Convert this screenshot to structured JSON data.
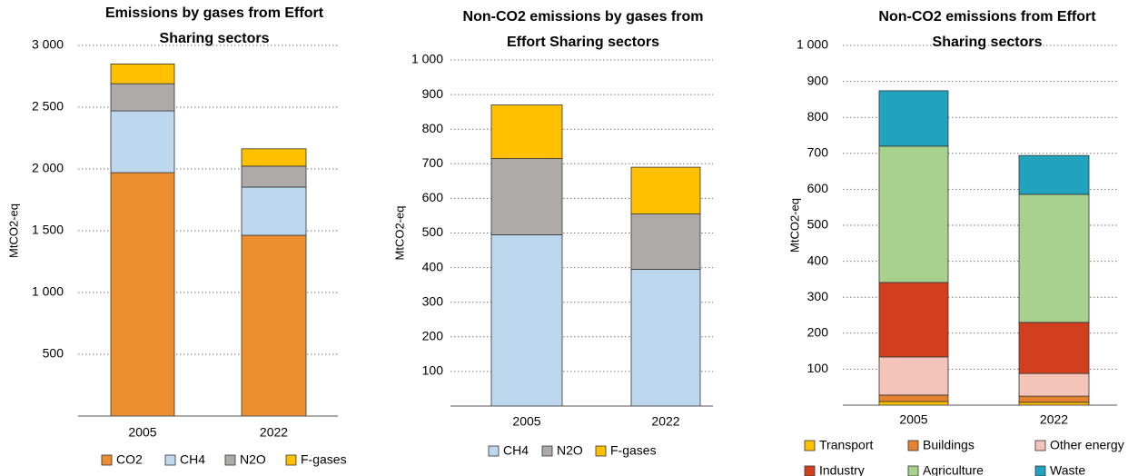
{
  "chart_data": [
    {
      "type": "stacked_bar",
      "title": "Emissions by gases from Effort Sharing sectors",
      "ylabel": "MtCO2-eq",
      "categories": [
        "2005",
        "2022"
      ],
      "series": [
        {
          "name": "CO2",
          "color": "#ed8f31",
          "values": [
            1970,
            1463
          ]
        },
        {
          "name": "CH4",
          "color": "#bdd7ee",
          "values": [
            500,
            390
          ]
        },
        {
          "name": "N2O",
          "color": "#aeaaaa",
          "values": [
            220,
            170
          ]
        },
        {
          "name": "F-gases",
          "color": "#ffc000",
          "values": [
            160,
            140
          ]
        }
      ],
      "ylim": [
        0,
        3000
      ],
      "yticks": [
        500,
        {
          "value": 1000,
          "label": "1 000"
        },
        {
          "value": 1500,
          "label": "1 500"
        },
        {
          "value": 2000,
          "label": "2 000"
        },
        {
          "value": 2500,
          "label": "2 500"
        },
        {
          "value": 3000,
          "label": "3 000"
        }
      ],
      "grid": true
    },
    {
      "type": "stacked_bar",
      "title": "Non-CO2 emissions by gases from Effort Sharing sectors",
      "ylabel": "MtCO2-eq",
      "categories": [
        "2005",
        "2022"
      ],
      "series": [
        {
          "name": "CH4",
          "color": "#bdd7ee",
          "values": [
            495,
            395
          ]
        },
        {
          "name": "N2O",
          "color": "#aeaaaa",
          "values": [
            220,
            160
          ]
        },
        {
          "name": "F-gases",
          "color": "#ffc000",
          "values": [
            155,
            135
          ]
        }
      ],
      "ylim": [
        0,
        1000
      ],
      "yticks": [
        100,
        200,
        300,
        400,
        500,
        600,
        700,
        800,
        900,
        {
          "value": 1000,
          "label": "1 000"
        }
      ],
      "grid": true
    },
    {
      "type": "stacked_bar",
      "title": "Non-CO2 emissions from Effort Sharing sectors",
      "ylabel": "MtCO2-eq",
      "categories": [
        "2005",
        "2022"
      ],
      "series": [
        {
          "name": "Transport",
          "color": "#ffc000",
          "values": [
            10,
            8
          ]
        },
        {
          "name": "Buildings",
          "color": "#e5822e",
          "values": [
            18,
            17
          ]
        },
        {
          "name": "Other energy",
          "color": "#f4c4b8",
          "values": [
            106,
            63
          ]
        },
        {
          "name": "Industry",
          "color": "#d23f1f",
          "values": [
            207,
            142
          ]
        },
        {
          "name": "Agriculture",
          "color": "#a9d18e",
          "values": [
            379,
            356
          ]
        },
        {
          "name": "Waste",
          "color": "#22a3bd",
          "values": [
            154,
            108
          ]
        }
      ],
      "ylim": [
        0,
        1000
      ],
      "yticks": [
        100,
        200,
        300,
        400,
        500,
        600,
        700,
        800,
        900,
        {
          "value": 1000,
          "label": "1 000"
        }
      ],
      "grid": true
    }
  ]
}
